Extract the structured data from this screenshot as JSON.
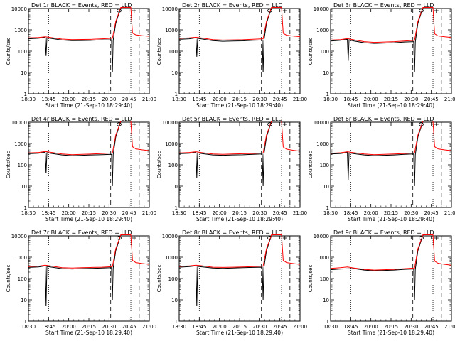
{
  "figure": {
    "xlabel": "Start Time (21-Sep-10 18:29:40)",
    "ylabel": "Counts/sec",
    "yticks": [
      "1",
      "10",
      "100",
      "1000",
      "10000"
    ],
    "xticks": [
      "18:30",
      "18:45",
      "20:00",
      "20:15",
      "20:30",
      "20:45",
      "21:00"
    ],
    "black_color": "#000000",
    "red_color": "#ff0000"
  },
  "chart_data": [
    {
      "type": "line",
      "title": "Det 1r BLACK = Events, RED = LLD",
      "yscale": "log",
      "ylim": [
        1,
        10000
      ],
      "series": [
        {
          "name": "Events",
          "color": "#000000",
          "x": [
            0,
            6,
            10,
            10.5,
            11,
            14,
            20,
            26,
            32,
            38,
            44,
            49.5,
            50,
            50.5,
            52,
            55
          ],
          "y": [
            380,
            400,
            450,
            60,
            420,
            390,
            330,
            310,
            315,
            320,
            340,
            340,
            10,
            320,
            2000,
            11000
          ]
        },
        {
          "name": "LLD",
          "color": "#ff0000",
          "x": [
            0,
            6,
            10,
            14,
            20,
            26,
            32,
            38,
            44,
            50,
            52,
            55,
            61,
            62,
            64,
            68,
            72
          ],
          "y": [
            420,
            440,
            470,
            430,
            370,
            350,
            355,
            360,
            380,
            400,
            2500,
            12000,
            12000,
            700,
            580,
            530,
            500
          ]
        }
      ]
    },
    {
      "type": "line",
      "title": "Det 2r BLACK = Events, RED = LLD",
      "yscale": "log",
      "ylim": [
        1,
        10000
      ],
      "series": [
        {
          "name": "Events",
          "color": "#000000",
          "x": [
            0,
            6,
            10,
            10.5,
            11,
            14,
            20,
            26,
            32,
            38,
            44,
            49.5,
            50,
            50.5,
            52,
            55
          ],
          "y": [
            360,
            380,
            420,
            55,
            400,
            370,
            310,
            290,
            300,
            305,
            320,
            330,
            10,
            310,
            2000,
            11000
          ]
        },
        {
          "name": "LLD",
          "color": "#ff0000",
          "x": [
            0,
            6,
            10,
            14,
            20,
            26,
            32,
            38,
            44,
            50,
            52,
            55,
            61,
            62,
            64,
            68,
            72
          ],
          "y": [
            400,
            420,
            450,
            410,
            350,
            330,
            340,
            345,
            360,
            380,
            2500,
            12000,
            12000,
            680,
            560,
            510,
            480
          ]
        }
      ]
    },
    {
      "type": "line",
      "title": "Det 3r BLACK = Events, RED = LLD",
      "yscale": "log",
      "ylim": [
        1,
        10000
      ],
      "series": [
        {
          "name": "Events",
          "color": "#000000",
          "x": [
            0,
            6,
            10,
            10.5,
            11,
            14,
            20,
            26,
            32,
            38,
            44,
            49.5,
            50,
            50.5,
            52,
            55
          ],
          "y": [
            300,
            320,
            360,
            35,
            340,
            300,
            250,
            230,
            240,
            250,
            270,
            280,
            10,
            270,
            2000,
            11000
          ]
        },
        {
          "name": "LLD",
          "color": "#ff0000",
          "x": [
            0,
            6,
            10,
            14,
            20,
            26,
            32,
            38,
            44,
            50,
            52,
            55,
            61,
            62,
            64,
            68,
            72
          ],
          "y": [
            330,
            350,
            390,
            340,
            280,
            260,
            270,
            280,
            300,
            320,
            2500,
            12000,
            12000,
            650,
            520,
            470,
            440
          ]
        }
      ]
    },
    {
      "type": "line",
      "title": "Det 4r BLACK = Events, RED = LLD",
      "yscale": "log",
      "ylim": [
        1,
        10000
      ],
      "series": [
        {
          "name": "Events",
          "color": "#000000",
          "x": [
            0,
            6,
            10,
            10.5,
            11,
            14,
            20,
            26,
            32,
            38,
            44,
            49.5,
            50,
            50.5,
            52,
            55
          ],
          "y": [
            330,
            350,
            390,
            40,
            370,
            340,
            290,
            270,
            280,
            290,
            300,
            310,
            10,
            300,
            2000,
            11000
          ]
        },
        {
          "name": "LLD",
          "color": "#ff0000",
          "x": [
            0,
            6,
            10,
            14,
            20,
            26,
            32,
            38,
            44,
            50,
            52,
            55,
            61,
            62,
            64,
            68,
            72
          ],
          "y": [
            360,
            380,
            420,
            380,
            320,
            300,
            310,
            320,
            340,
            360,
            2500,
            12000,
            12000,
            700,
            560,
            500,
            460
          ]
        }
      ]
    },
    {
      "type": "line",
      "title": "Det 5r BLACK = Events, RED = LLD",
      "yscale": "log",
      "ylim": [
        1,
        10000
      ],
      "series": [
        {
          "name": "Events",
          "color": "#000000",
          "x": [
            0,
            6,
            10,
            10.5,
            11,
            14,
            20,
            26,
            32,
            38,
            44,
            49.5,
            50,
            50.5,
            52,
            55
          ],
          "y": [
            330,
            350,
            380,
            25,
            360,
            330,
            290,
            280,
            290,
            295,
            310,
            320,
            10,
            300,
            2000,
            11000
          ]
        },
        {
          "name": "LLD",
          "color": "#ff0000",
          "x": [
            0,
            6,
            10,
            14,
            20,
            26,
            32,
            38,
            44,
            50,
            52,
            55,
            61,
            62,
            64,
            68,
            72
          ],
          "y": [
            360,
            380,
            410,
            370,
            320,
            310,
            320,
            330,
            340,
            360,
            2500,
            12000,
            12000,
            680,
            540,
            480,
            440
          ]
        }
      ]
    },
    {
      "type": "line",
      "title": "Det 6r BLACK = Events, RED = LLD",
      "yscale": "log",
      "ylim": [
        1,
        10000
      ],
      "series": [
        {
          "name": "Events",
          "color": "#000000",
          "x": [
            0,
            6,
            10,
            10.5,
            11,
            14,
            20,
            26,
            32,
            38,
            44,
            49.5,
            50,
            50.5,
            52,
            55
          ],
          "y": [
            320,
            340,
            380,
            20,
            360,
            330,
            290,
            270,
            280,
            290,
            310,
            320,
            10,
            300,
            2000,
            11000
          ]
        },
        {
          "name": "LLD",
          "color": "#ff0000",
          "x": [
            0,
            6,
            10,
            14,
            20,
            26,
            32,
            38,
            44,
            50,
            52,
            55,
            61,
            62,
            64,
            68,
            72
          ],
          "y": [
            350,
            370,
            410,
            370,
            320,
            300,
            310,
            320,
            340,
            360,
            2500,
            12000,
            12000,
            700,
            560,
            500,
            460
          ]
        }
      ]
    },
    {
      "type": "line",
      "title": "Det 7r BLACK = Events, RED = LLD",
      "yscale": "log",
      "ylim": [
        1,
        10000
      ],
      "series": [
        {
          "name": "Events",
          "color": "#000000",
          "x": [
            0,
            6,
            10,
            10.5,
            11,
            14,
            20,
            26,
            32,
            38,
            44,
            49.5,
            50,
            50.5,
            52,
            55
          ],
          "y": [
            330,
            350,
            390,
            5,
            370,
            340,
            290,
            280,
            290,
            300,
            310,
            320,
            10,
            300,
            2000,
            11000
          ]
        },
        {
          "name": "LLD",
          "color": "#ff0000",
          "x": [
            0,
            6,
            10,
            14,
            20,
            26,
            32,
            38,
            44,
            50,
            52,
            55,
            61,
            62,
            64,
            68,
            72
          ],
          "y": [
            360,
            380,
            420,
            380,
            320,
            310,
            320,
            330,
            340,
            360,
            2500,
            12000,
            12000,
            700,
            560,
            500,
            460
          ]
        }
      ]
    },
    {
      "type": "line",
      "title": "Det 8r BLACK = Events, RED = LLD",
      "yscale": "log",
      "ylim": [
        1,
        10000
      ],
      "series": [
        {
          "name": "Events",
          "color": "#000000",
          "x": [
            0,
            6,
            10,
            10.5,
            11,
            14,
            20,
            26,
            32,
            38,
            44,
            49.5,
            50,
            50.5,
            52,
            55
          ],
          "y": [
            340,
            360,
            390,
            5,
            370,
            350,
            310,
            300,
            310,
            320,
            330,
            340,
            10,
            320,
            2000,
            11000
          ]
        },
        {
          "name": "LLD",
          "color": "#ff0000",
          "x": [
            0,
            6,
            10,
            14,
            20,
            26,
            32,
            38,
            44,
            50,
            52,
            55,
            61,
            62,
            64,
            68,
            72
          ],
          "y": [
            370,
            390,
            420,
            390,
            340,
            330,
            340,
            350,
            360,
            380,
            2500,
            12000,
            12000,
            700,
            560,
            500,
            460
          ]
        }
      ]
    },
    {
      "type": "line",
      "title": "Det 9r BLACK = Events, RED = LLD",
      "yscale": "log",
      "ylim": [
        1,
        10000
      ],
      "series": [
        {
          "name": "Events",
          "color": "#000000",
          "x": [
            0,
            6,
            14,
            20,
            26,
            32,
            38,
            44,
            49.5,
            50,
            50.5,
            52,
            55
          ],
          "y": [
            260,
            280,
            290,
            250,
            230,
            240,
            250,
            270,
            280,
            10,
            270,
            2000,
            11000
          ]
        },
        {
          "name": "LLD",
          "color": "#ff0000",
          "x": [
            0,
            6,
            10,
            14,
            20,
            26,
            32,
            38,
            44,
            50,
            52,
            55,
            61,
            62,
            64,
            68,
            72
          ],
          "y": [
            300,
            320,
            350,
            310,
            270,
            250,
            260,
            270,
            290,
            310,
            2500,
            12000,
            12000,
            650,
            520,
            460,
            420
          ]
        }
      ]
    }
  ]
}
